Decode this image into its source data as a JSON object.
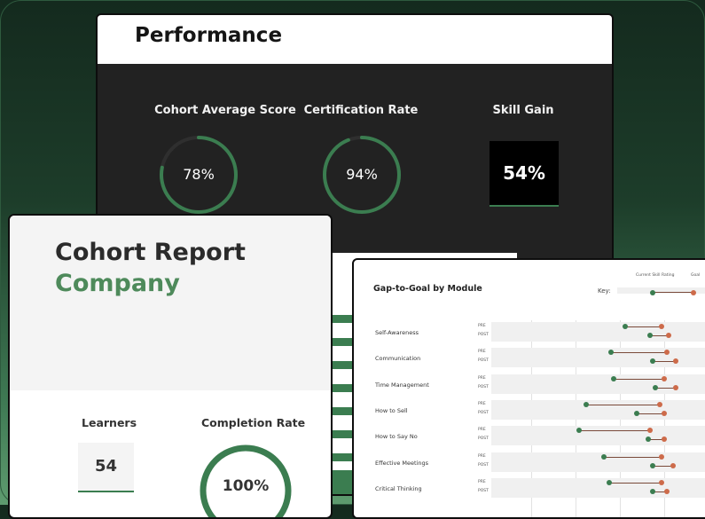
{
  "colors": {
    "accent": "#3b7d50",
    "current": "#3b7d50",
    "goal": "#cd6b4a"
  },
  "performance": {
    "title": "Performance",
    "metrics": [
      {
        "label": "Cohort Average Score",
        "value": "78%",
        "progress": 0.78
      },
      {
        "label": "Certification Rate",
        "value": "94%",
        "progress": 0.94
      },
      {
        "label": "Skill Gain",
        "value": "54%"
      }
    ]
  },
  "cohort": {
    "title": "Cohort Report",
    "subtitle": "Company",
    "learners_label": "Learners",
    "learners_value": "54",
    "completion_label": "Completion Rate",
    "completion_value": "100%",
    "completion_progress": 1.0
  },
  "gap": {
    "title": "Gap-to-Goal by Module",
    "legend_current": "Current Skill Rating",
    "legend_goal": "Goal",
    "key_label": "Key:",
    "pre_tag": "PRE",
    "post_tag": "POST",
    "modules": [
      {
        "name": "Self-Awareness",
        "pre": [
          0.58,
          0.74
        ],
        "post": [
          0.69,
          0.77
        ]
      },
      {
        "name": "Communication",
        "pre": [
          0.52,
          0.76
        ],
        "post": [
          0.7,
          0.8
        ]
      },
      {
        "name": "Time Management",
        "pre": [
          0.53,
          0.75
        ],
        "post": [
          0.71,
          0.8
        ]
      },
      {
        "name": "How to Sell",
        "pre": [
          0.41,
          0.73
        ],
        "post": [
          0.63,
          0.75
        ]
      },
      {
        "name": "How to Say No",
        "pre": [
          0.38,
          0.69
        ],
        "post": [
          0.68,
          0.75
        ]
      },
      {
        "name": "Effective Meetings",
        "pre": [
          0.49,
          0.74
        ],
        "post": [
          0.7,
          0.79
        ]
      },
      {
        "name": "Critical Thinking",
        "pre": [
          0.51,
          0.74
        ],
        "post": [
          0.7,
          0.76
        ]
      }
    ]
  }
}
